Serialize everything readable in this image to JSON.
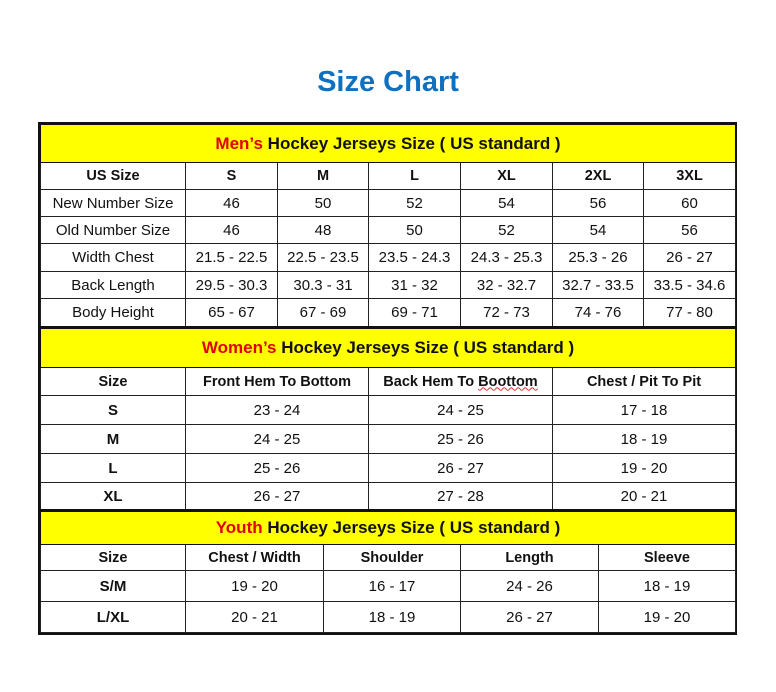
{
  "title": "Size Chart",
  "colors": {
    "title": "#1070c0",
    "band": "#ffff00",
    "highlight": "#e00000"
  },
  "mens": {
    "prefix": "Men’s",
    "suffix": " Hockey Jerseys Size ( US standard )",
    "headers": [
      "US Size",
      "S",
      "M",
      "L",
      "XL",
      "2XL",
      "3XL"
    ],
    "rows": [
      [
        "New Number Size",
        "46",
        "50",
        "52",
        "54",
        "56",
        "60"
      ],
      [
        "Old Number Size",
        "46",
        "48",
        "50",
        "52",
        "54",
        "56"
      ],
      [
        "Width Chest",
        "21.5 - 22.5",
        "22.5 - 23.5",
        "23.5 - 24.3",
        "24.3 - 25.3",
        "25.3 - 26",
        "26 - 27"
      ],
      [
        "Back Length",
        "29.5 - 30.3",
        "30.3 - 31",
        "31 - 32",
        "32 - 32.7",
        "32.7 - 33.5",
        "33.5 - 34.6"
      ],
      [
        "Body Height",
        "65 - 67",
        "67 - 69",
        "69 - 71",
        "72 - 73",
        "74 - 76",
        "77 - 80"
      ]
    ]
  },
  "womens": {
    "prefix": "Women’s",
    "suffix": " Hockey Jerseys Size ( US standard )",
    "headers": [
      "Size",
      "Front Hem To Bottom",
      "Back Hem To Boottom",
      "Chest / Pit To Pit"
    ],
    "rows": [
      [
        "S",
        "23 - 24",
        "24 - 25",
        "17 - 18"
      ],
      [
        "M",
        "24 - 25",
        "25 - 26",
        "18 - 19"
      ],
      [
        "L",
        "25 - 26",
        "26 - 27",
        "19 - 20"
      ],
      [
        "XL",
        "26 - 27",
        "27 - 28",
        "20 - 21"
      ]
    ]
  },
  "youth": {
    "prefix": "Youth",
    "suffix": " Hockey Jerseys Size ( US standard )",
    "headers": [
      "Size",
      "Chest / Width",
      "Shoulder",
      "Length",
      "Sleeve"
    ],
    "rows": [
      [
        "S/M",
        "19 - 20",
        "16 - 17",
        "24 - 26",
        "18 - 19"
      ],
      [
        "L/XL",
        "20 - 21",
        "18 - 19",
        "26 - 27",
        "19 - 20"
      ]
    ]
  }
}
